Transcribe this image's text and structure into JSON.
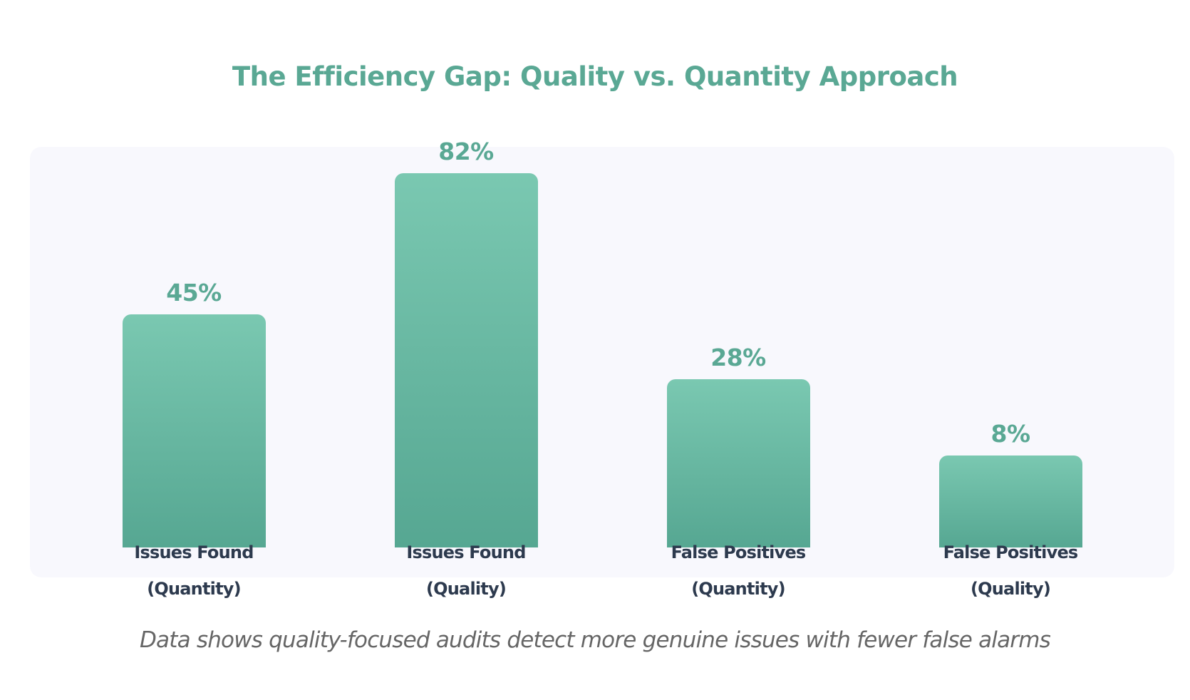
{
  "chart_data": {
    "type": "bar",
    "title": "The Efficiency Gap: Quality vs. Quantity Approach",
    "categories": [
      [
        "Issues Found",
        "(Quantity)"
      ],
      [
        "Issues Found",
        "(Quality)"
      ],
      [
        "False Positives",
        "(Quantity)"
      ],
      [
        "False Positives",
        "(Quality)"
      ]
    ],
    "values": [
      45,
      82,
      28,
      8
    ],
    "value_labels": [
      "45%",
      "82%",
      "28%",
      "8%"
    ],
    "unit": "%",
    "xlabel": "",
    "ylabel": "",
    "grid": false,
    "colors": {
      "bar_top": "#7ac8b1",
      "bar_bottom": "#56a792",
      "label": "#5aa894",
      "category": "#2d3a4e"
    }
  },
  "caption": "Data shows quality-focused audits detect more genuine issues with fewer false alarms"
}
